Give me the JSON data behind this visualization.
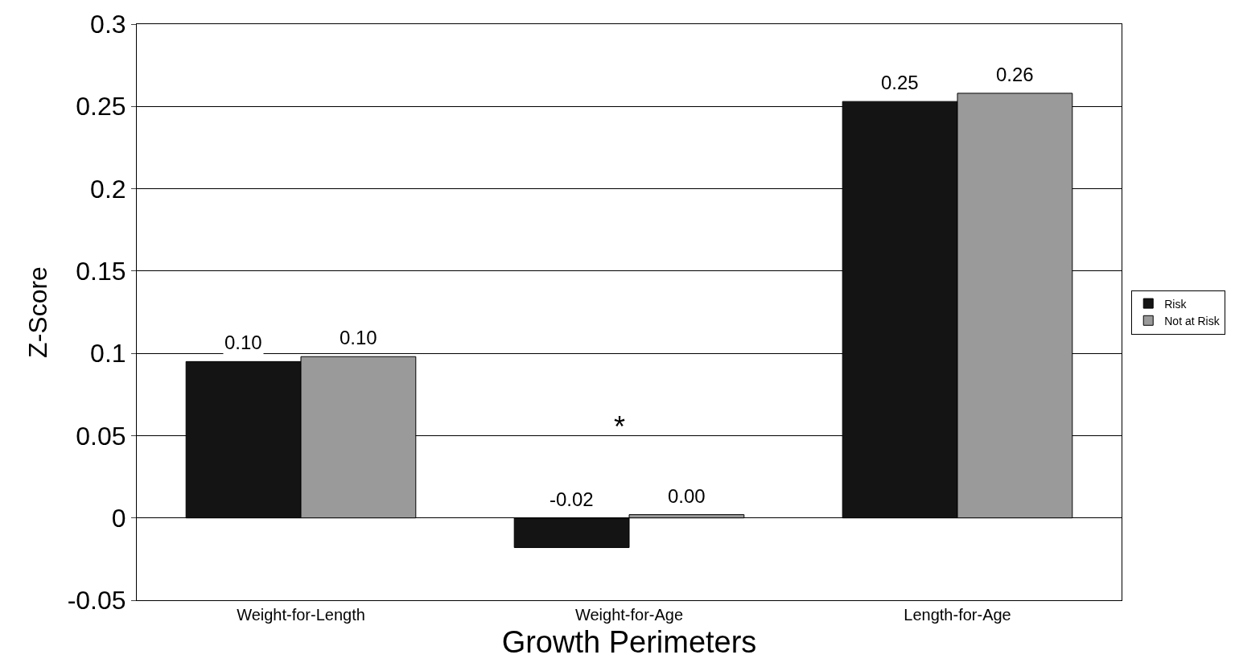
{
  "chart_data": {
    "type": "bar",
    "xlabel": "Growth Perimeters",
    "ylabel": "Z-Score",
    "categories": [
      "Weight-for-Length",
      "Weight-for-Age",
      "Length-for-Age"
    ],
    "series": [
      {
        "name": "Risk",
        "color": "#141414",
        "values": [
          0.095,
          -0.018,
          0.253
        ],
        "value_labels": [
          "0.10",
          "-0.02",
          "0.25"
        ]
      },
      {
        "name": "Not at Risk",
        "color": "#9a9a9a",
        "values": [
          0.098,
          0.002,
          0.258
        ],
        "value_labels": [
          "0.10",
          "0.00",
          "0.26"
        ]
      }
    ],
    "ylim": [
      -0.05,
      0.3
    ],
    "yticks": [
      -0.05,
      0,
      0.05,
      0.1,
      0.15,
      0.2,
      0.25,
      0.3
    ],
    "grid": "y",
    "legend": "right",
    "annotations": [
      "*"
    ]
  }
}
